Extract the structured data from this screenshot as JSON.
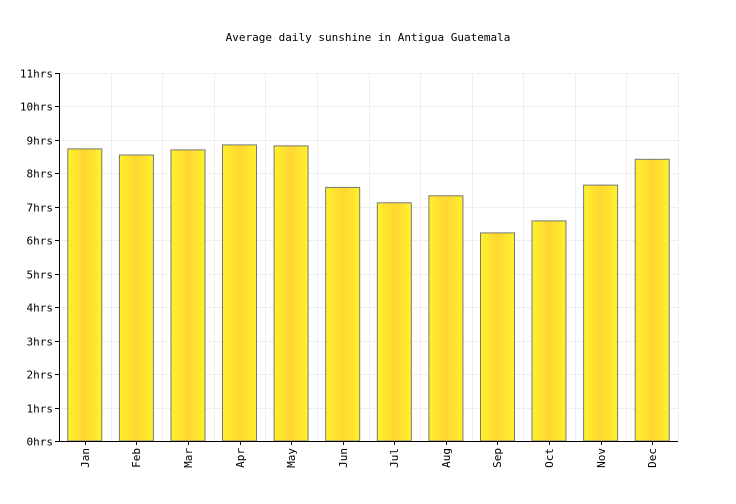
{
  "chart_data": {
    "type": "bar",
    "title": "Average daily sunshine in Antigua Guatemala",
    "xlabel": "",
    "ylabel": "",
    "categories": [
      "Jan",
      "Feb",
      "Mar",
      "Apr",
      "May",
      "Jun",
      "Jul",
      "Aug",
      "Sep",
      "Oct",
      "Nov",
      "Dec"
    ],
    "values": [
      8.73,
      8.55,
      8.7,
      8.85,
      8.82,
      7.58,
      7.12,
      7.33,
      6.22,
      6.58,
      7.65,
      8.42
    ],
    "ylim": [
      0,
      11
    ],
    "yticks": [
      {
        "value": 0,
        "label": "0hrs"
      },
      {
        "value": 1,
        "label": "1hrs"
      },
      {
        "value": 2,
        "label": "2hrs"
      },
      {
        "value": 3,
        "label": "3hrs"
      },
      {
        "value": 4,
        "label": "4hrs"
      },
      {
        "value": 5,
        "label": "5hrs"
      },
      {
        "value": 6,
        "label": "6hrs"
      },
      {
        "value": 7,
        "label": "7hrs"
      },
      {
        "value": 8,
        "label": "8hrs"
      },
      {
        "value": 9,
        "label": "9hrs"
      },
      {
        "value": 10,
        "label": "10hrs"
      },
      {
        "value": 11,
        "label": "11hrs"
      }
    ],
    "grid": true,
    "legend": "none",
    "colors": {
      "bar_edge": "#fff12b",
      "bar_center": "#ffd633",
      "bar_stroke": "#777777",
      "grid": "#eeeeee",
      "axis": "#000000"
    }
  }
}
